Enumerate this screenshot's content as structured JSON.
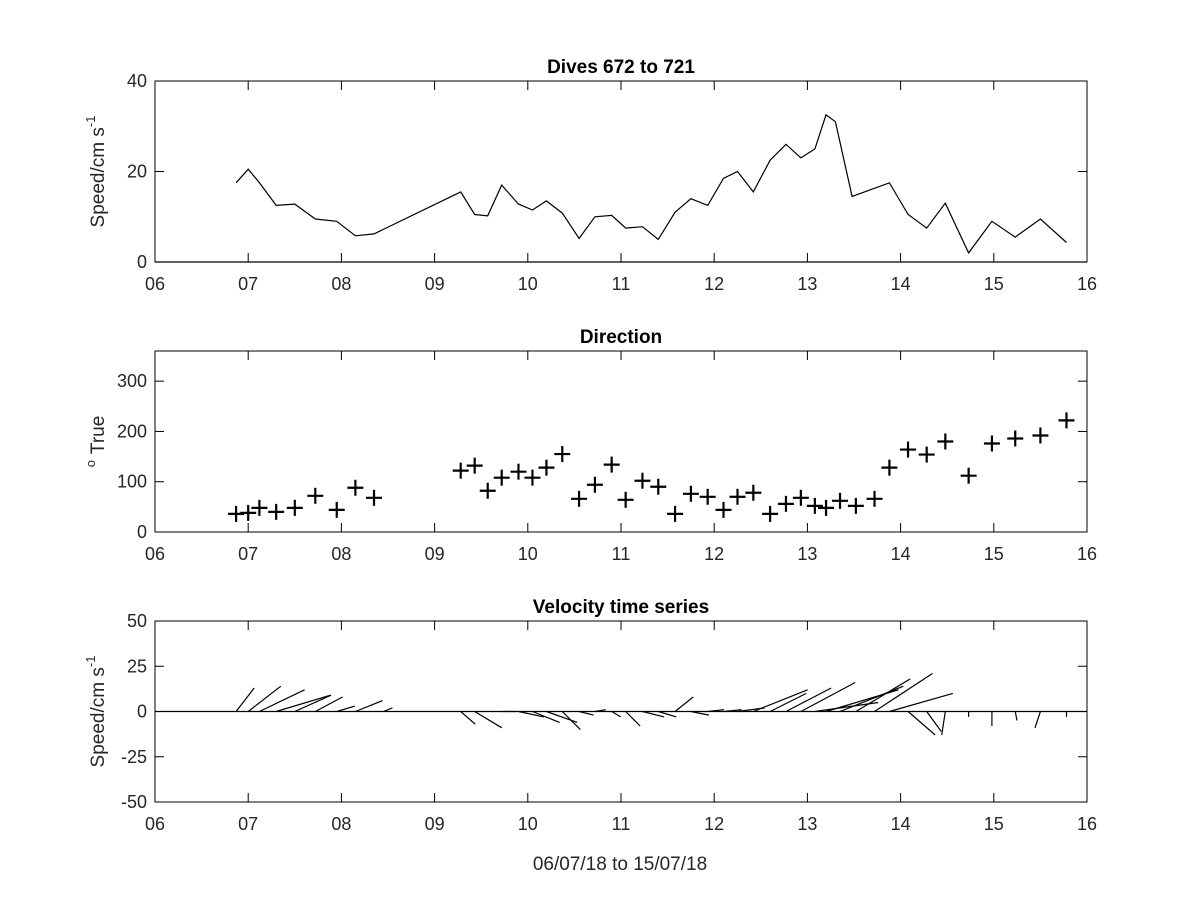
{
  "figure": {
    "xlabel": "06/07/18 to 15/07/18"
  },
  "chart_data": [
    {
      "type": "line",
      "title": "Dives 672 to 721",
      "ylabel_main": "Speed/cm s",
      "ylabel_sup": "-1",
      "xlim": [
        6,
        16
      ],
      "ylim": [
        0,
        40
      ],
      "x_ticks": [
        "06",
        "07",
        "08",
        "09",
        "10",
        "11",
        "12",
        "13",
        "14",
        "15",
        "16"
      ],
      "y_ticks": [
        "0",
        "20",
        "40"
      ],
      "series": [
        {
          "x": [
            6.87,
            7.0,
            7.12,
            7.3,
            7.5,
            7.72,
            7.95,
            8.15,
            8.35,
            9.28,
            9.43,
            9.57,
            9.72,
            9.9,
            10.05,
            10.2,
            10.37,
            10.55,
            10.72,
            10.9,
            11.05,
            11.23,
            11.4,
            11.58,
            11.75,
            11.93,
            12.1,
            12.25,
            12.42,
            12.6,
            12.77,
            12.93,
            13.08,
            13.2,
            13.3,
            13.48,
            13.88,
            14.08,
            14.28,
            14.48,
            14.73,
            14.98,
            15.23,
            15.5,
            15.78
          ],
          "y": [
            17.5,
            20.5,
            17.5,
            12.5,
            12.8,
            9.5,
            9.0,
            5.8,
            6.2,
            15.5,
            10.5,
            10.2,
            17.0,
            12.8,
            11.5,
            13.5,
            10.8,
            5.2,
            10.0,
            10.3,
            7.5,
            7.8,
            5.0,
            11.0,
            14.0,
            12.5,
            18.5,
            20.0,
            15.5,
            22.5,
            26.0,
            23.0,
            25.0,
            32.5,
            31.0,
            14.5,
            17.5,
            10.5,
            7.5,
            13.0,
            2.0,
            9.0,
            5.5,
            9.5,
            4.3
          ]
        }
      ]
    },
    {
      "type": "scatter",
      "title": "Direction",
      "ylabel_main": "True",
      "ylabel_sup": "o",
      "xlim": [
        6,
        16
      ],
      "ylim": [
        0,
        360
      ],
      "x_ticks": [
        "06",
        "07",
        "08",
        "09",
        "10",
        "11",
        "12",
        "13",
        "14",
        "15",
        "16"
      ],
      "y_ticks": [
        "0",
        "100",
        "200",
        "300"
      ],
      "series": [
        {
          "x": [
            6.87,
            7.0,
            7.12,
            7.3,
            7.5,
            7.72,
            7.95,
            8.15,
            8.35,
            9.28,
            9.43,
            9.57,
            9.72,
            9.9,
            10.05,
            10.2,
            10.37,
            10.55,
            10.72,
            10.9,
            11.05,
            11.23,
            11.4,
            11.58,
            11.75,
            11.93,
            12.1,
            12.25,
            12.42,
            12.6,
            12.77,
            12.93,
            13.08,
            13.2,
            13.35,
            13.52,
            13.72,
            13.88,
            14.08,
            14.28,
            14.48,
            14.73,
            14.98,
            15.23,
            15.5,
            15.78
          ],
          "y": [
            36,
            38,
            48,
            40,
            48,
            72,
            44,
            88,
            68,
            122,
            132,
            82,
            108,
            120,
            108,
            128,
            155,
            66,
            94,
            134,
            64,
            102,
            90,
            36,
            76,
            70,
            44,
            70,
            78,
            36,
            56,
            68,
            52,
            48,
            62,
            52,
            66,
            128,
            164,
            154,
            180,
            112,
            176,
            186,
            192,
            222
          ]
        }
      ]
    },
    {
      "type": "stick",
      "title": "Velocity time series",
      "ylabel_main": "Speed/cm s",
      "ylabel_sup": "-1",
      "xlim": [
        6,
        16
      ],
      "ylim": [
        -50,
        50
      ],
      "x_ticks": [
        "06",
        "07",
        "08",
        "09",
        "10",
        "11",
        "12",
        "13",
        "14",
        "15",
        "16"
      ],
      "y_ticks": [
        "-50",
        "-25",
        "0",
        "25",
        "50"
      ],
      "series": [
        {
          "x": [
            6.87,
            7.0,
            7.12,
            7.3,
            7.5,
            7.72,
            7.95,
            8.15,
            8.45,
            9.28,
            9.43,
            9.72,
            9.9,
            10.05,
            10.2,
            10.37,
            10.55,
            10.72,
            10.9,
            11.05,
            11.23,
            11.4,
            11.58,
            11.75,
            11.93,
            12.1,
            12.25,
            12.42,
            12.6,
            12.77,
            12.93,
            13.08,
            13.2,
            13.35,
            13.52,
            13.72,
            13.88,
            14.08,
            14.28,
            14.48,
            14.73,
            14.98,
            15.23,
            15.5,
            15.78
          ],
          "u": [
            10,
            18,
            25,
            30,
            20,
            15,
            10,
            15,
            5,
            8,
            15,
            8,
            14,
            15,
            17,
            10,
            8,
            6,
            5,
            8,
            12,
            10,
            10,
            10,
            9,
            10,
            15,
            30,
            20,
            25,
            30,
            35,
            40,
            35,
            30,
            32,
            35,
            15,
            8,
            -2,
            0,
            0,
            1,
            -3,
            0
          ],
          "v": [
            13,
            14,
            12,
            9,
            9,
            8,
            3,
            6,
            2,
            -7,
            -9,
            0,
            -3,
            -6,
            -6,
            -10,
            -2,
            1,
            -3,
            -8,
            -3,
            -3,
            8,
            -2,
            1,
            1,
            2,
            12,
            10,
            13,
            16,
            5,
            12,
            14,
            18,
            21,
            10,
            -13,
            -11,
            -13,
            -3,
            -8,
            -5,
            -9,
            -3
          ]
        }
      ]
    }
  ]
}
